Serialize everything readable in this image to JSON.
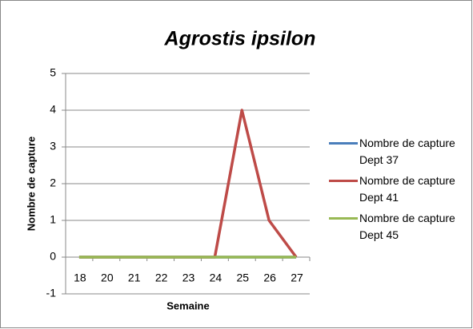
{
  "chart_data": {
    "type": "line",
    "title": "Agrostis ipsilon",
    "x_label": "Semaine",
    "y_label": "Nombre de capture",
    "categories": [
      "18",
      "20",
      "21",
      "22",
      "23",
      "24",
      "25",
      "26",
      "27"
    ],
    "series": [
      {
        "name": "Nombre de capture Dept 37",
        "color": "#4a7ebb",
        "values": [
          0,
          0,
          0,
          0,
          0,
          0,
          0,
          0,
          0
        ]
      },
      {
        "name": "Nombre de capture Dept 41",
        "color": "#be4b48",
        "values": [
          0,
          0,
          0,
          0,
          0,
          0,
          4,
          1,
          0
        ]
      },
      {
        "name": "Nombre de capture Dept 45",
        "color": "#98b954",
        "values": [
          0,
          0,
          0,
          0,
          0,
          0,
          0,
          0,
          0
        ]
      }
    ],
    "ylim": [
      -1,
      5
    ],
    "yticks": [
      -1,
      0,
      1,
      2,
      3,
      4,
      5
    ],
    "grid": true,
    "legend": "right"
  }
}
